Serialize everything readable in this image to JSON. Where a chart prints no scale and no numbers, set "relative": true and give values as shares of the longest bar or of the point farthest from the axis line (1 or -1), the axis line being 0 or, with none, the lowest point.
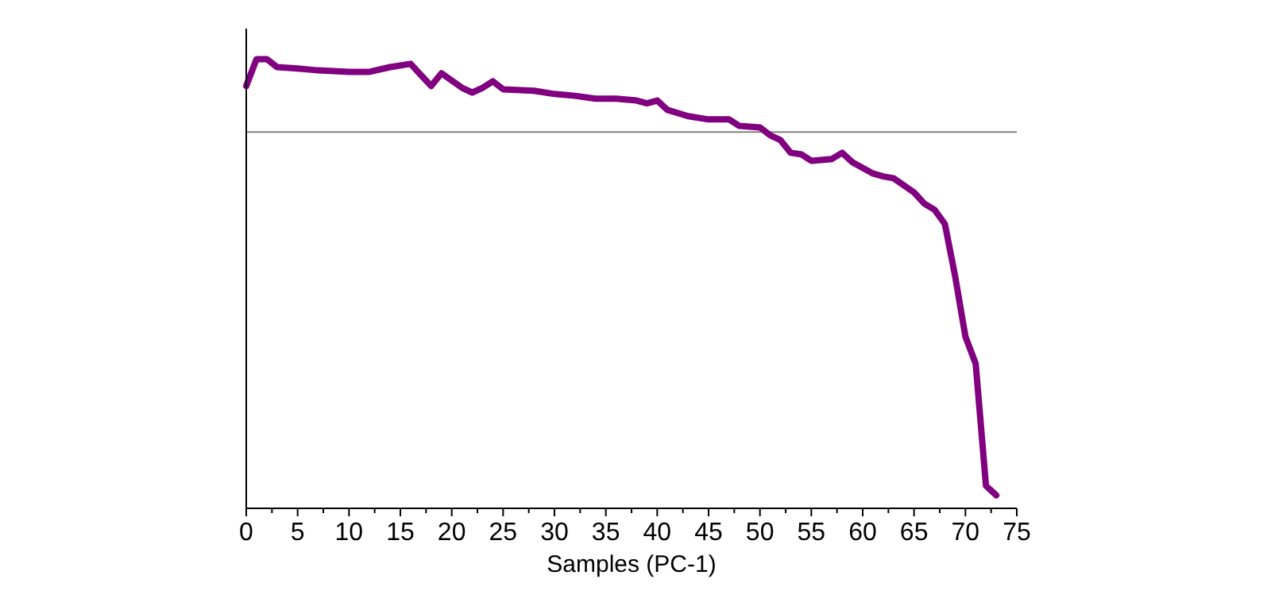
{
  "chart_data": {
    "type": "line",
    "xlabel": "Samples (PC-1)",
    "relative": true,
    "xlim": [
      0,
      75
    ],
    "xticks": [
      0,
      {
        "value": 2.5,
        "label": null
      },
      5,
      {
        "value": 7.5,
        "label": null
      },
      10,
      {
        "value": 12.5,
        "label": null
      },
      15,
      {
        "value": 17.5,
        "label": null
      },
      20,
      {
        "value": 22.5,
        "label": null
      },
      25,
      {
        "value": 27.5,
        "label": null
      },
      30,
      {
        "value": 32.5,
        "label": null
      },
      35,
      {
        "value": 37.5,
        "label": null
      },
      40,
      {
        "value": 42.5,
        "label": null
      },
      45,
      {
        "value": 47.5,
        "label": null
      },
      50,
      {
        "value": 52.5,
        "label": null
      },
      55,
      {
        "value": 57.5,
        "label": null
      },
      60,
      {
        "value": 62.5,
        "label": null
      },
      65,
      {
        "value": 67.5,
        "label": null
      },
      70,
      {
        "value": 72.5,
        "label": null
      },
      75
    ],
    "x": [
      0,
      1,
      2,
      3,
      5,
      7,
      10,
      12,
      14,
      16,
      17,
      18,
      19,
      21,
      22,
      23,
      24,
      25,
      28,
      30,
      32,
      34,
      36,
      38,
      39,
      40,
      41,
      43,
      45,
      47,
      48,
      50,
      51,
      52,
      53,
      54,
      55,
      57,
      58,
      59,
      61,
      62,
      63,
      65,
      66,
      67,
      68,
      69,
      70,
      71,
      72,
      73
    ],
    "series": [
      {
        "color": "#800080",
        "values": [
          0.127,
          0.201,
          0.201,
          0.179,
          0.175,
          0.17,
          0.166,
          0.166,
          0.179,
          0.188,
          0.157,
          0.127,
          0.162,
          0.122,
          0.109,
          0.122,
          0.14,
          0.118,
          0.114,
          0.105,
          0.1,
          0.092,
          0.092,
          0.087,
          0.079,
          0.087,
          0.061,
          0.044,
          0.035,
          0.035,
          0.017,
          0.013,
          -0.009,
          -0.022,
          -0.057,
          -0.061,
          -0.079,
          -0.074,
          -0.057,
          -0.083,
          -0.114,
          -0.122,
          -0.127,
          -0.166,
          -0.197,
          -0.214,
          -0.253,
          -0.397,
          -0.563,
          -0.638,
          -0.974,
          -1
        ]
      }
    ],
    "grid": false,
    "marker": "none",
    "line_style": "solid"
  }
}
